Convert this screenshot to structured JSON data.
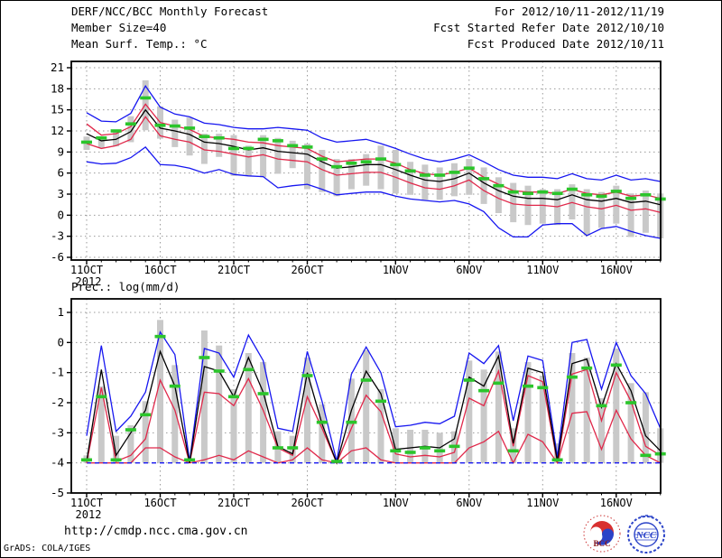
{
  "header": {
    "title": "DERF/NCC/BCC Monthly Forecast",
    "member_size": "Member Size=40",
    "for_range": "For 2012/10/11-2012/11/19",
    "fcst_started": "Fcst Started Refer Date 2012/10/10",
    "fcst_produced": "Fcst Produced Date 2012/10/11"
  },
  "footer": {
    "url": "http://cmdp.ncc.cma.gov.cn",
    "grads_credit": "GrADS: COLA/IGES",
    "logo_bcc_label": "BCC",
    "logo_ncc_label": "NCC"
  },
  "colors": {
    "blue": "#1616f0",
    "red": "#e0284a",
    "black": "#000000",
    "green": "#2bc52b",
    "gray_bar": "#c9c9c9",
    "grid": "#999999"
  },
  "chart_data": [
    {
      "type": "line",
      "title": "Mean Surf. Temp.: °C",
      "x_year": "2012",
      "x_tick_labels": [
        "11OCT",
        "16OCT",
        "21OCT",
        "26OCT",
        "1NOV",
        "6NOV",
        "11NOV",
        "16NOV"
      ],
      "x_tick_days": [
        0,
        5,
        10,
        15,
        21,
        26,
        31,
        36
      ],
      "n_days": 40,
      "ylim": [
        -6.5,
        22
      ],
      "yticks": [
        21,
        18,
        15,
        12,
        9,
        6,
        3,
        0,
        -3,
        -6
      ],
      "legend_note": "blue=member max/min, red=mean+/-std, black=ensemble mean, green=analysis, gray bar=member spread",
      "series": [
        {
          "name": "ens-minus-std",
          "color": "red",
          "values": [
            10.2,
            9.5,
            9.9,
            10.8,
            14.0,
            11.3,
            10.8,
            10.4,
            9.3,
            9.1,
            8.7,
            8.3,
            8.6,
            8.0,
            7.8,
            7.6,
            6.5,
            5.7,
            5.9,
            6.1,
            6.1,
            5.4,
            4.6,
            3.9,
            3.7,
            4.2,
            5.0,
            3.5,
            2.4,
            1.6,
            1.4,
            1.4,
            1.2,
            1.8,
            1.2,
            0.9,
            1.4,
            0.7,
            0.9,
            0.4
          ]
        },
        {
          "name": "ens-min",
          "color": "blue",
          "values": [
            7.6,
            7.3,
            7.4,
            8.2,
            9.7,
            7.2,
            7.1,
            6.7,
            6.0,
            6.5,
            5.8,
            5.6,
            5.5,
            3.9,
            4.2,
            4.4,
            3.7,
            2.9,
            3.1,
            3.3,
            3.3,
            2.7,
            2.3,
            2.1,
            1.9,
            2.1,
            1.6,
            0.5,
            -1.8,
            -3.1,
            -3.1,
            -1.4,
            -1.2,
            -1.2,
            -2.9,
            -1.9,
            -1.6,
            -2.3,
            -2.9,
            -3.3
          ]
        },
        {
          "name": "ens-plus-std",
          "color": "red",
          "values": [
            13.0,
            11.4,
            11.6,
            12.6,
            15.8,
            13.2,
            12.7,
            12.2,
            11.2,
            11.0,
            10.8,
            10.4,
            10.3,
            9.9,
            9.7,
            9.5,
            8.4,
            7.6,
            7.8,
            8.0,
            8.0,
            7.4,
            6.5,
            5.9,
            5.7,
            6.1,
            6.7,
            5.4,
            4.4,
            3.5,
            3.3,
            3.3,
            3.1,
            3.7,
            3.1,
            2.9,
            3.3,
            2.7,
            2.9,
            2.4
          ]
        },
        {
          "name": "ens-max",
          "color": "blue",
          "values": [
            14.6,
            13.4,
            13.3,
            14.5,
            18.4,
            15.4,
            14.4,
            14.0,
            13.1,
            12.9,
            12.5,
            12.3,
            12.3,
            12.5,
            12.3,
            12.1,
            11.0,
            10.4,
            10.6,
            10.8,
            10.2,
            9.5,
            8.7,
            8.0,
            7.6,
            8.0,
            8.6,
            7.6,
            6.5,
            5.7,
            5.4,
            5.4,
            5.2,
            5.9,
            5.2,
            5.0,
            5.7,
            5.0,
            5.2,
            4.8
          ]
        },
        {
          "name": "ens-mean",
          "color": "black",
          "values": [
            11.6,
            10.6,
            10.8,
            11.9,
            15.0,
            12.4,
            12.0,
            11.5,
            10.4,
            10.2,
            9.8,
            9.3,
            9.6,
            9.1,
            8.9,
            8.7,
            7.6,
            6.7,
            6.9,
            7.2,
            7.2,
            6.5,
            5.7,
            5.0,
            4.8,
            5.2,
            6.0,
            4.6,
            3.5,
            2.7,
            2.4,
            2.4,
            2.2,
            2.9,
            2.2,
            2.0,
            2.4,
            1.8,
            2.0,
            1.5
          ]
        }
      ],
      "bars": {
        "top": [
          11.2,
          11.1,
          12.2,
          14.1,
          19.2,
          15.5,
          13.6,
          13.9,
          11.6,
          11.6,
          11.4,
          9.9,
          11.4,
          11.0,
          10.6,
          10.2,
          9.3,
          8.0,
          8.0,
          8.7,
          9.9,
          9.3,
          7.6,
          7.2,
          6.8,
          7.4,
          8.0,
          6.8,
          5.4,
          4.6,
          4.2,
          3.7,
          3.7,
          4.4,
          3.7,
          3.3,
          4.2,
          3.1,
          3.5,
          3.1
        ],
        "bottom": [
          9.3,
          9.6,
          9.8,
          10.4,
          12.1,
          10.9,
          9.7,
          8.5,
          7.3,
          8.3,
          5.6,
          5.6,
          5.4,
          5.9,
          6.7,
          3.7,
          3.3,
          2.7,
          3.7,
          4.2,
          3.7,
          3.1,
          2.9,
          2.2,
          2.2,
          2.7,
          2.9,
          1.6,
          0.3,
          -1.0,
          -1.4,
          -1.2,
          -1.4,
          -0.6,
          -2.9,
          -1.8,
          -1.2,
          -3.1,
          -2.5,
          -3.3
        ]
      },
      "obs": {
        "name": "analysis",
        "values": [
          10.4,
          11.0,
          12.0,
          13.0,
          16.7,
          12.8,
          12.7,
          12.4,
          11.2,
          11.0,
          9.5,
          9.5,
          10.8,
          10.6,
          9.9,
          9.7,
          8.0,
          6.9,
          7.4,
          7.6,
          8.0,
          7.2,
          6.3,
          5.7,
          5.7,
          6.1,
          6.7,
          5.2,
          4.2,
          3.3,
          3.1,
          3.3,
          3.1,
          3.7,
          2.9,
          2.7,
          3.4,
          2.4,
          2.9,
          2.3
        ]
      }
    },
    {
      "type": "line",
      "title": "Prec.: log(mm/d)",
      "x_year": "2012",
      "x_tick_labels": [
        "11OCT",
        "16OCT",
        "21OCT",
        "26OCT",
        "1NOV",
        "6NOV",
        "11NOV",
        "16NOV"
      ],
      "x_tick_days": [
        0,
        5,
        10,
        15,
        21,
        26,
        31,
        36
      ],
      "n_days": 40,
      "ylim": [
        -5,
        1.45
      ],
      "yticks": [
        1,
        0,
        -1,
        -2,
        -3,
        -4,
        -5
      ],
      "legend_note": "blue=member max/min, red=mean+/-std, black=ensemble mean, green=analysis, gray bar=member spread, floor at -4",
      "series": [
        {
          "name": "ens-minus-std",
          "color": "red",
          "values": [
            -4,
            -4,
            -4,
            -4,
            -3.5,
            -3.5,
            -3.8,
            -4,
            -3.9,
            -3.75,
            -3.9,
            -3.6,
            -3.8,
            -4,
            -3.9,
            -3.5,
            -3.9,
            -4,
            -3.6,
            -3.5,
            -3.9,
            -4,
            -4,
            -4,
            -4,
            -4,
            -3.5,
            -3.3,
            -2.95,
            -4,
            -3.05,
            -3.3,
            -4,
            -2.35,
            -2.3,
            -3.55,
            -2.25,
            -3.2,
            -3.75,
            -4
          ]
        },
        {
          "name": "ens-min",
          "color": "blue",
          "dash": "5 4",
          "values": [
            -4,
            -4,
            -4,
            -4,
            -4,
            -4,
            -4,
            -4,
            -4,
            -4,
            -4,
            -4,
            -4,
            -4,
            -4,
            -4,
            -4,
            -4,
            -4,
            -4,
            -4,
            -4,
            -4,
            -4,
            -4,
            -4,
            -4,
            -4,
            -4,
            -4,
            -4,
            -4,
            -4,
            -4,
            -4,
            -4,
            -4,
            -4,
            -4,
            -4
          ]
        },
        {
          "name": "ens-plus-std",
          "color": "red",
          "values": [
            -4,
            -1.5,
            -3.95,
            -3.75,
            -3.2,
            -1.25,
            -2.25,
            -4,
            -1.65,
            -1.7,
            -2.1,
            -1.2,
            -2.25,
            -3.5,
            -3.75,
            -1.8,
            -2.85,
            -4,
            -2.85,
            -1.75,
            -2.3,
            -3.7,
            -3.8,
            -3.75,
            -3.8,
            -3.65,
            -1.85,
            -2.1,
            -0.95,
            -3.45,
            -1.1,
            -1.3,
            -4,
            -1.05,
            -0.9,
            -2.6,
            -1.0,
            -1.95,
            -3.45,
            -3.75
          ]
        },
        {
          "name": "ens-max",
          "color": "blue",
          "values": [
            -3.1,
            -0.1,
            -2.95,
            -2.45,
            -1.65,
            0.35,
            -0.4,
            -3.95,
            -0.2,
            -0.35,
            -1.15,
            0.25,
            -0.6,
            -2.85,
            -2.95,
            -0.3,
            -1.95,
            -3.95,
            -1.05,
            -0.15,
            -1.0,
            -2.8,
            -2.75,
            -2.65,
            -2.7,
            -2.45,
            -0.35,
            -0.7,
            -0.1,
            -2.6,
            -0.45,
            -0.6,
            -3.8,
            0.0,
            0.1,
            -1.55,
            0.0,
            -1.1,
            -1.7,
            -2.85
          ]
        },
        {
          "name": "ens-mean",
          "color": "black",
          "values": [
            -3.95,
            -0.9,
            -3.75,
            -3.0,
            -2.25,
            -0.3,
            -1.45,
            -4,
            -0.8,
            -0.95,
            -1.8,
            -0.5,
            -1.65,
            -3.45,
            -3.7,
            -1.0,
            -2.7,
            -4,
            -2.25,
            -0.95,
            -1.7,
            -3.55,
            -3.5,
            -3.45,
            -3.5,
            -3.2,
            -1.15,
            -1.45,
            -0.45,
            -3.35,
            -0.85,
            -1.0,
            -3.95,
            -0.7,
            -0.55,
            -2.15,
            -0.7,
            -1.6,
            -3.1,
            -3.6
          ]
        }
      ],
      "bars": {
        "top": [
          -3.75,
          -1.45,
          -3.1,
          -2.75,
          -1.95,
          0.75,
          -0.75,
          null,
          0.4,
          -0.1,
          -1.55,
          -0.35,
          -0.65,
          -2.95,
          -3.1,
          -0.5,
          -2.05,
          null,
          -1.2,
          -0.25,
          -1.55,
          -2.85,
          -2.9,
          -2.9,
          -3.0,
          -2.95,
          -0.6,
          -0.9,
          -0.3,
          -2.85,
          -0.65,
          -1.1,
          -3.35,
          -0.35,
          -0.5,
          -1.85,
          -0.2,
          -1.35,
          -1.65,
          -2.85
        ],
        "bottom": [
          -4,
          -4,
          -4,
          -4,
          -4,
          -4,
          -4,
          null,
          -4,
          -4,
          -4,
          -4,
          -4,
          -4,
          -4,
          -4,
          -4,
          null,
          -4,
          -4,
          -4,
          -4,
          -4,
          -4,
          -4,
          -4,
          -4,
          -4,
          -4,
          -4,
          -4,
          -4,
          -4,
          -4,
          -4,
          -4,
          -4,
          -4,
          -4,
          -4
        ]
      },
      "obs": {
        "name": "analysis",
        "values": [
          -3.9,
          -1.8,
          -3.9,
          -2.9,
          -2.4,
          0.2,
          -1.45,
          -3.9,
          -0.5,
          -0.95,
          -1.8,
          -0.9,
          -1.7,
          -3.5,
          -3.5,
          -1.1,
          -2.65,
          -3.95,
          -2.65,
          -1.25,
          -1.95,
          -3.6,
          -3.65,
          -3.5,
          -3.6,
          -3.45,
          -1.25,
          -1.6,
          -1.35,
          -3.6,
          -1.45,
          -1.5,
          -3.9,
          -1.15,
          -0.85,
          -2.1,
          -0.75,
          -2.0,
          -3.75,
          -3.7
        ]
      }
    }
  ]
}
